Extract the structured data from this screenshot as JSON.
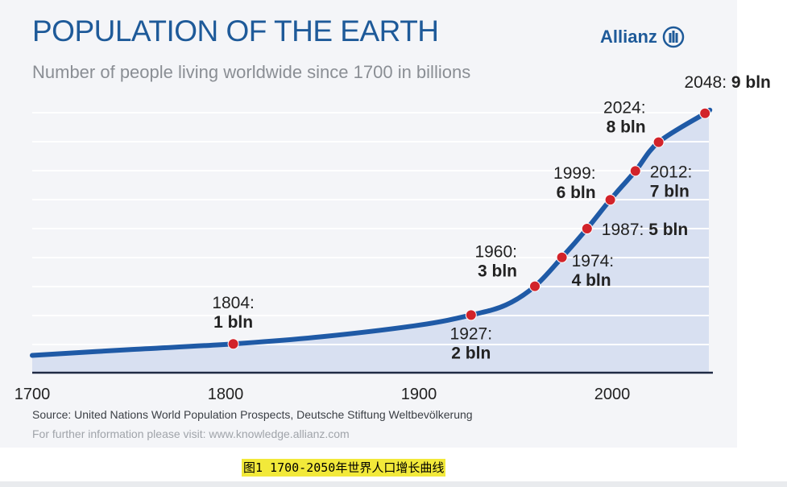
{
  "chart_data": {
    "type": "area",
    "title": "POPULATION OF THE EARTH",
    "subtitle": "Number of people living worldwide since 1700 in billions",
    "brand": "Allianz",
    "xlabel": "",
    "ylabel": "",
    "xlim": [
      1700,
      2050
    ],
    "ylim": [
      0,
      10
    ],
    "x_ticks": [
      "1700",
      "1800",
      "1900",
      "2000"
    ],
    "grid": true,
    "series": [
      {
        "x": [
          1700,
          1750,
          1804,
          1850,
          1900,
          1927,
          1945,
          1960,
          1974,
          1987,
          1999,
          2012,
          2024,
          2048,
          2050
        ],
        "y": [
          0.6,
          0.8,
          1,
          1.25,
          1.65,
          2,
          2.35,
          3,
          4,
          5,
          6,
          7,
          8,
          9,
          9.1
        ]
      }
    ],
    "points": [
      {
        "year": 1804,
        "value": 1,
        "line1": "1804:",
        "line2": "1 bln"
      },
      {
        "year": 1927,
        "value": 2,
        "line1": "1927:",
        "line2": "2 bln"
      },
      {
        "year": 1960,
        "value": 3,
        "line1": "1960:",
        "line2": "3 bln"
      },
      {
        "year": 1974,
        "value": 4,
        "line1": "1974:",
        "line2": "4 bln"
      },
      {
        "year": 1987,
        "value": 5,
        "line1": "1987:",
        "line2": "5 bln"
      },
      {
        "year": 1999,
        "value": 6,
        "line1": "1999:",
        "line2": "6 bln"
      },
      {
        "year": 2012,
        "value": 7,
        "line1": "2012:",
        "line2": "7 bln"
      },
      {
        "year": 2024,
        "value": 8,
        "line1": "2024:",
        "line2": "8 bln"
      },
      {
        "year": 2048,
        "value": 9,
        "line1": "2048:",
        "line2": "9 bln"
      }
    ],
    "colors": {
      "line": "#1f5aa6",
      "fill": "#d8e0f1",
      "point": "#d2232a",
      "grid": "#ffffff"
    }
  },
  "footer": {
    "source": "Source: United Nations World Population Prospects, Deutsche Stiftung Weltbevölkerung",
    "further": "For further information please visit: www.knowledge.allianz.com"
  },
  "caption": "图1  1700-2050年世界人口增长曲线"
}
